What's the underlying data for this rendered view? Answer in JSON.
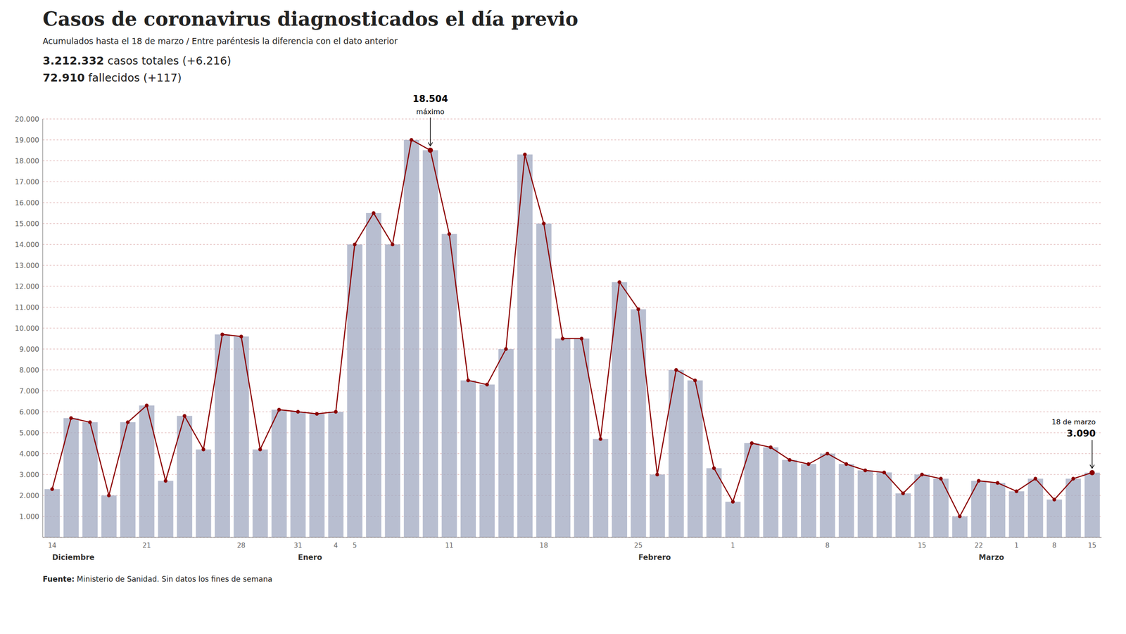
{
  "chart_data": {
    "type": "bar",
    "title": "Casos de coronavirus diagnosticados el día previo",
    "subtitle": "Acumulados hasta el 18 de marzo / Entre paréntesis la diferencia con el dato anterior",
    "stats": [
      [
        "3.212.332",
        " casos totales (+6.216)"
      ],
      [
        "72.910",
        " fallecidos (+117)"
      ]
    ],
    "source": [
      "Fuente:",
      " Ministerio de Sanidad. Sin datos los fines de semana"
    ],
    "categories": [
      "14",
      null,
      null,
      null,
      null,
      "21",
      null,
      null,
      null,
      null,
      "28",
      null,
      null,
      "31",
      null,
      "4",
      "5",
      null,
      null,
      null,
      null,
      "11",
      null,
      null,
      null,
      null,
      "18",
      null,
      null,
      null,
      null,
      "25",
      null,
      null,
      null,
      null,
      "1",
      null,
      null,
      null,
      null,
      "8",
      null,
      null,
      null,
      null,
      "15",
      null,
      null,
      "22",
      null,
      "1",
      null,
      "8",
      null,
      "15"
    ],
    "group_labels": [
      {
        "x": 0,
        "text": "Diciembre"
      },
      {
        "x": 13,
        "text": "Enero"
      },
      {
        "x": 31,
        "text": "Febrero"
      },
      {
        "x": 49,
        "text": "Marzo"
      }
    ],
    "series": [
      {
        "type": "bar",
        "color": "#a0a8c0",
        "values": [
          2300,
          5700,
          5500,
          2000,
          5500,
          6300,
          2700,
          5800,
          4200,
          9700,
          9600,
          4200,
          6100,
          6000,
          5900,
          6000,
          14000,
          15500,
          14000,
          19000,
          18504,
          14500,
          7500,
          7300,
          9000,
          18300,
          15000,
          9500,
          9500,
          4700,
          12200,
          10900,
          3000,
          8000,
          7500,
          3300,
          1700,
          4500,
          4300,
          3700,
          3500,
          4000,
          3500,
          3200,
          3100,
          2100,
          3000,
          2800,
          1000,
          2700,
          2600,
          2200,
          2800,
          1800,
          2800,
          3090
        ]
      },
      {
        "type": "line",
        "color": "#8b0000",
        "marker": "circle",
        "values": [
          2300,
          5700,
          5500,
          2000,
          5500,
          6300,
          2700,
          5800,
          4200,
          9700,
          9600,
          4200,
          6100,
          6000,
          5900,
          6000,
          14000,
          15500,
          14000,
          19000,
          18504,
          14500,
          7500,
          7300,
          9000,
          18300,
          15000,
          9500,
          9500,
          4700,
          12200,
          10900,
          3000,
          8000,
          7500,
          3300,
          1700,
          4500,
          4300,
          3700,
          3500,
          4000,
          3500,
          3200,
          3100,
          2100,
          3000,
          2800,
          1000,
          2700,
          2600,
          2200,
          2800,
          1800,
          2800,
          3090
        ]
      }
    ],
    "annotations": [
      {
        "x": 20,
        "y": 18504,
        "lines": [
          "18.504",
          "máximo"
        ]
      },
      {
        "x": 55,
        "y": 3090,
        "lines": [
          "18 de marzo",
          "3.090"
        ]
      }
    ],
    "ylim": [
      0,
      20000
    ],
    "yticks": [
      {
        "value": 1000,
        "label": "1.000"
      },
      {
        "value": 2000,
        "label": "2.000"
      },
      {
        "value": 3000,
        "label": "3.000"
      },
      {
        "value": 4000,
        "label": "4.000"
      },
      {
        "value": 5000,
        "label": "5.000"
      },
      {
        "value": 6000,
        "label": "6.000"
      },
      {
        "value": 7000,
        "label": "7.000"
      },
      {
        "value": 8000,
        "label": "8.000"
      },
      {
        "value": 9000,
        "label": "9.000"
      },
      {
        "value": 10000,
        "label": "10.000"
      },
      {
        "value": 11000,
        "label": "11.000"
      },
      {
        "value": 12000,
        "label": "12.000"
      },
      {
        "value": 13000,
        "label": "13.000"
      },
      {
        "value": 14000,
        "label": "14.000"
      },
      {
        "value": 15000,
        "label": "15.000"
      },
      {
        "value": 16000,
        "label": "16.000"
      },
      {
        "value": 17000,
        "label": "17.000"
      },
      {
        "value": 18000,
        "label": "18.000"
      },
      {
        "value": 19000,
        "label": "19.000"
      },
      {
        "value": 20000,
        "label": "20.000"
      }
    ],
    "grid": true
  }
}
